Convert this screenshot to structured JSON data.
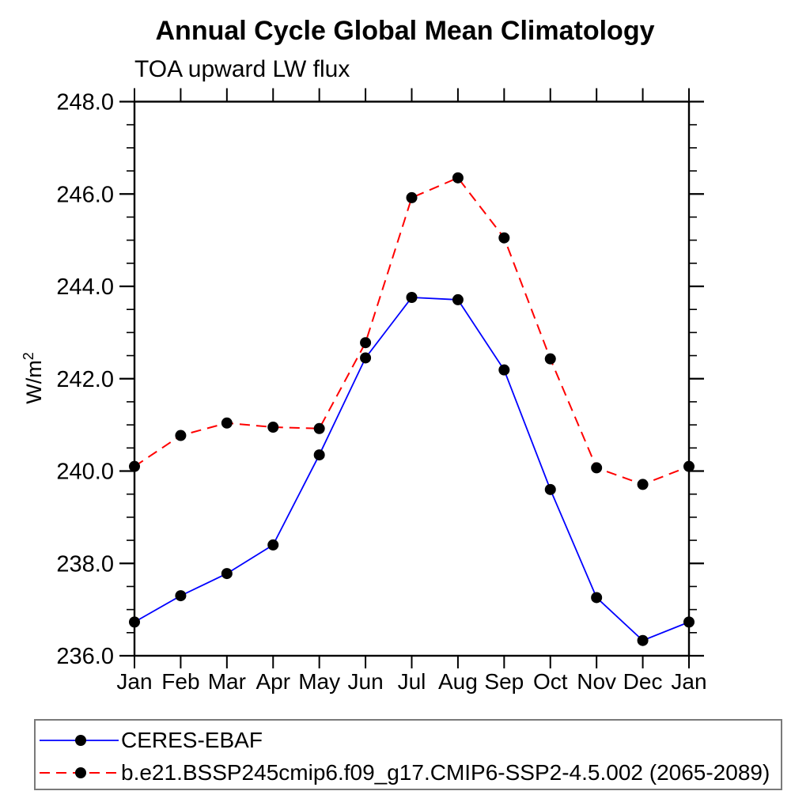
{
  "title": "Annual Cycle Global Mean Climatology",
  "subtitle": "TOA upward LW flux",
  "ylabel": {
    "base": "W/m",
    "sup": "2"
  },
  "colors": {
    "axis": "#000000",
    "text": "#000000",
    "marker": "#000000",
    "legend_border": "#7a7a7a",
    "background": "#ffffff"
  },
  "chart_data": {
    "type": "line",
    "title": "Annual Cycle Global Mean Climatology",
    "subtitle": "TOA upward LW flux",
    "xlabel": "",
    "ylabel": "W/m2",
    "x_categories": [
      "Jan",
      "Feb",
      "Mar",
      "Apr",
      "May",
      "Jun",
      "Jul",
      "Aug",
      "Sep",
      "Oct",
      "Nov",
      "Dec",
      "Jan"
    ],
    "ylim": [
      236.0,
      248.0
    ],
    "y_major_step": 2.0,
    "y_minor_step": 0.5,
    "y_tick_labels": [
      "236.0",
      "238.0",
      "240.0",
      "242.0",
      "244.0",
      "246.0",
      "248.0"
    ],
    "grid": false,
    "legend_position": "bottom",
    "series": [
      {
        "name": "CERES-EBAF",
        "color": "#0000ff",
        "linestyle": "solid",
        "marker": "circle",
        "marker_color": "#000000",
        "values": [
          236.73,
          237.3,
          237.78,
          238.4,
          240.35,
          242.45,
          243.76,
          243.71,
          242.19,
          239.6,
          237.26,
          236.33,
          236.73
        ]
      },
      {
        "name": "b.e21.BSSP245cmip6.f09_g17.CMIP6-SSP2-4.5.002 (2065-2089)",
        "color": "#ff0000",
        "linestyle": "dashed",
        "marker": "circle",
        "marker_color": "#000000",
        "values": [
          240.1,
          240.77,
          241.04,
          240.95,
          240.92,
          242.78,
          245.92,
          246.35,
          245.05,
          242.43,
          240.07,
          239.71,
          240.1
        ]
      }
    ]
  }
}
